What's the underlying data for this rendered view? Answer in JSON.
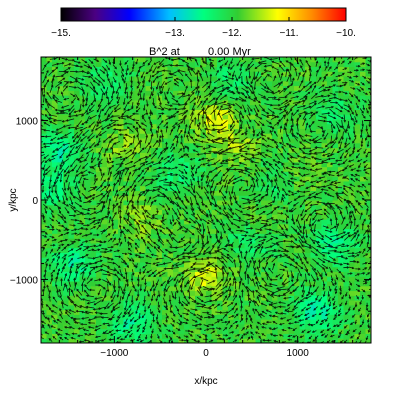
{
  "chart_data": {
    "type": "heatmap",
    "title_prefix": "B^2 at",
    "title_time": "0.00 Myr",
    "xlabel": "x/kpc",
    "ylabel": "y/kpc",
    "xlim": [
      -1800,
      1800
    ],
    "ylim": [
      -1800,
      1800
    ],
    "x_ticks": [
      {
        "value": -1000,
        "label": "−1000"
      },
      {
        "value": 0,
        "label": "0"
      },
      {
        "value": 1000,
        "label": "1000"
      }
    ],
    "y_ticks": [
      {
        "value": -1000,
        "label": "−1000"
      },
      {
        "value": 0,
        "label": "0"
      },
      {
        "value": 1000,
        "label": "1000"
      }
    ],
    "colorbar": {
      "range": [
        -15,
        -10
      ],
      "labels": [
        {
          "value": -15,
          "label": "−15."
        },
        {
          "value": -13,
          "label": "−13."
        },
        {
          "value": -12,
          "label": "−12."
        },
        {
          "value": -11,
          "label": "−11."
        },
        {
          "value": -10,
          "label": "−10."
        }
      ],
      "colors": [
        "#000000",
        "#4b0082",
        "#0000ff",
        "#00bfff",
        "#00ff7f",
        "#32cd32",
        "#ffff00",
        "#ff8c00",
        "#ff0000"
      ]
    },
    "field_base_level": -11.9,
    "low_regions": [
      {
        "x": -1600,
        "y": 600,
        "level": -12.6
      },
      {
        "x": -1450,
        "y": -800,
        "level": -12.5
      },
      {
        "x": 1400,
        "y": -550,
        "level": -12.5
      },
      {
        "x": 1200,
        "y": -1400,
        "level": -12.6
      },
      {
        "x": -300,
        "y": 350,
        "level": -12.4
      },
      {
        "x": 500,
        "y": -500,
        "level": -12.4
      },
      {
        "x": -800,
        "y": -1550,
        "level": -12.5
      },
      {
        "x": 1400,
        "y": 1100,
        "level": -12.3
      },
      {
        "x": -1100,
        "y": 1500,
        "level": -12.3
      },
      {
        "x": 300,
        "y": 1500,
        "level": -12.3
      },
      {
        "x": -1700,
        "y": 100,
        "level": -12.4
      },
      {
        "x": 800,
        "y": 200,
        "level": -12.3
      }
    ],
    "high_regions": [
      {
        "x": 100,
        "y": 1050,
        "level": -11.3
      },
      {
        "x": 0,
        "y": -950,
        "level": -11.3
      },
      {
        "x": 300,
        "y": 700,
        "level": -11.5
      },
      {
        "x": 600,
        "y": -300,
        "level": -11.6
      },
      {
        "x": -700,
        "y": -250,
        "level": -11.6
      },
      {
        "x": -900,
        "y": 700,
        "level": -11.6
      },
      {
        "x": 1000,
        "y": 300,
        "level": -11.6
      }
    ],
    "vortices": [
      {
        "x": -300,
        "y": 1400,
        "sense": 1
      },
      {
        "x": 200,
        "y": 1050,
        "sense": -1
      },
      {
        "x": -900,
        "y": 700,
        "sense": 1
      },
      {
        "x": 1200,
        "y": 900,
        "sense": -1
      },
      {
        "x": -600,
        "y": -50,
        "sense": -1
      },
      {
        "x": 400,
        "y": 150,
        "sense": 1
      },
      {
        "x": 0,
        "y": -1000,
        "sense": 1
      },
      {
        "x": 800,
        "y": -900,
        "sense": -1
      },
      {
        "x": -1200,
        "y": -1100,
        "sense": -1
      },
      {
        "x": -1300,
        "y": 200,
        "sense": 1
      },
      {
        "x": 1300,
        "y": -300,
        "sense": 1
      },
      {
        "x": -200,
        "y": -500,
        "sense": -1
      },
      {
        "x": 700,
        "y": 1500,
        "sense": 1
      },
      {
        "x": -1500,
        "y": 1300,
        "sense": -1
      }
    ]
  }
}
